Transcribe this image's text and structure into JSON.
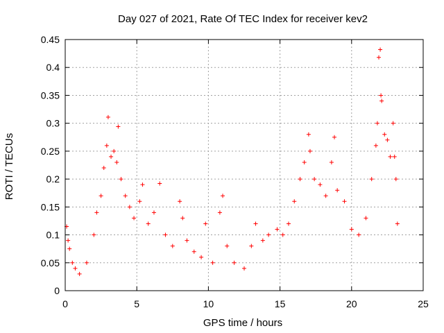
{
  "chart_data": {
    "type": "scatter",
    "title": "Day 027 of 2021, Rate Of TEC Index for receiver kev2",
    "xlabel": "GPS time / hours",
    "ylabel": "ROTI / TECUs",
    "xlim": [
      0,
      25
    ],
    "ylim": [
      0,
      0.45
    ],
    "xticks": [
      0,
      5,
      10,
      15,
      20,
      25
    ],
    "xtick_labels": [
      "0",
      "5",
      "10",
      "15",
      "20",
      "25"
    ],
    "yticks": [
      0,
      0.05,
      0.1,
      0.15,
      0.2,
      0.25,
      0.3,
      0.35,
      0.4,
      0.45
    ],
    "ytick_labels": [
      "0",
      "0.05",
      "0.1",
      "0.15",
      "0.2",
      "0.25",
      "0.3",
      "0.35",
      "0.4",
      "0.45"
    ],
    "grid": true,
    "marker": "+",
    "color": "#ff0000",
    "series": [
      {
        "name": "ROTI",
        "points": [
          [
            0.1,
            0.115
          ],
          [
            0.2,
            0.09
          ],
          [
            0.3,
            0.075
          ],
          [
            0.5,
            0.05
          ],
          [
            0.7,
            0.04
          ],
          [
            1.0,
            0.03
          ],
          [
            1.5,
            0.05
          ],
          [
            2.0,
            0.1
          ],
          [
            2.2,
            0.14
          ],
          [
            2.5,
            0.17
          ],
          [
            2.7,
            0.22
          ],
          [
            2.9,
            0.26
          ],
          [
            3.0,
            0.311
          ],
          [
            3.2,
            0.24
          ],
          [
            3.4,
            0.25
          ],
          [
            3.6,
            0.23
          ],
          [
            3.7,
            0.294
          ],
          [
            3.9,
            0.2
          ],
          [
            4.2,
            0.17
          ],
          [
            4.5,
            0.15
          ],
          [
            4.8,
            0.13
          ],
          [
            5.2,
            0.16
          ],
          [
            5.4,
            0.19
          ],
          [
            5.8,
            0.12
          ],
          [
            6.2,
            0.14
          ],
          [
            6.6,
            0.192
          ],
          [
            7.0,
            0.1
          ],
          [
            7.5,
            0.08
          ],
          [
            8.0,
            0.16
          ],
          [
            8.2,
            0.13
          ],
          [
            8.5,
            0.09
          ],
          [
            9.0,
            0.07
          ],
          [
            9.5,
            0.06
          ],
          [
            9.8,
            0.12
          ],
          [
            10.3,
            0.05
          ],
          [
            10.8,
            0.14
          ],
          [
            11.0,
            0.17
          ],
          [
            11.3,
            0.08
          ],
          [
            11.8,
            0.05
          ],
          [
            12.5,
            0.04
          ],
          [
            13.0,
            0.08
          ],
          [
            13.3,
            0.12
          ],
          [
            13.8,
            0.09
          ],
          [
            14.2,
            0.1
          ],
          [
            14.8,
            0.11
          ],
          [
            15.2,
            0.1
          ],
          [
            15.6,
            0.12
          ],
          [
            16.0,
            0.16
          ],
          [
            16.4,
            0.2
          ],
          [
            16.7,
            0.23
          ],
          [
            17.0,
            0.28
          ],
          [
            17.1,
            0.25
          ],
          [
            17.4,
            0.2
          ],
          [
            17.8,
            0.19
          ],
          [
            18.2,
            0.17
          ],
          [
            18.6,
            0.23
          ],
          [
            18.8,
            0.275
          ],
          [
            19.0,
            0.18
          ],
          [
            19.5,
            0.16
          ],
          [
            20.0,
            0.11
          ],
          [
            20.5,
            0.1
          ],
          [
            21.0,
            0.13
          ],
          [
            21.4,
            0.2
          ],
          [
            21.7,
            0.26
          ],
          [
            21.8,
            0.3
          ],
          [
            21.9,
            0.418
          ],
          [
            22.0,
            0.432
          ],
          [
            22.05,
            0.35
          ],
          [
            22.1,
            0.34
          ],
          [
            22.3,
            0.28
          ],
          [
            22.5,
            0.27
          ],
          [
            22.7,
            0.24
          ],
          [
            22.9,
            0.3
          ],
          [
            23.0,
            0.24
          ],
          [
            23.1,
            0.2
          ],
          [
            23.2,
            0.12
          ]
        ]
      }
    ]
  }
}
